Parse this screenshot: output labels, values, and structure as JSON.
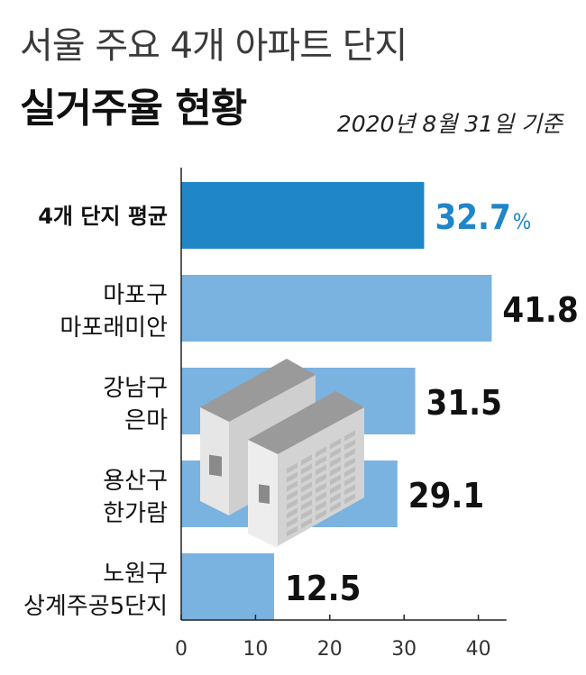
{
  "header": {
    "title_line1": "서울 주요 4개 아파트 단지",
    "title_line2": "실거주율 현황",
    "date_note": "2020년 8월 31일 기준"
  },
  "chart_data": {
    "type": "bar",
    "orientation": "horizontal",
    "categories": [
      [
        "4개 단지 평균"
      ],
      [
        "마포구",
        "마포래미안"
      ],
      [
        "강남구",
        "은마"
      ],
      [
        "용산구",
        "한가람"
      ],
      [
        "노원구",
        "상계주공5단지"
      ]
    ],
    "values": [
      32.7,
      41.8,
      31.5,
      29.1,
      12.5
    ],
    "value_labels": [
      "32.7",
      "41.8",
      "31.5",
      "29.1",
      "12.5"
    ],
    "first_label_unit": "%",
    "xlim": [
      0,
      45
    ],
    "xticks": [
      0,
      10,
      20,
      30,
      40
    ],
    "grid": false,
    "colors": {
      "highlight_bar": "#1f86c8",
      "bar": "#7ab2e0",
      "highlight_label": "#1f86c8",
      "label": "#111111"
    },
    "illustration": "apartment-buildings-icon"
  }
}
